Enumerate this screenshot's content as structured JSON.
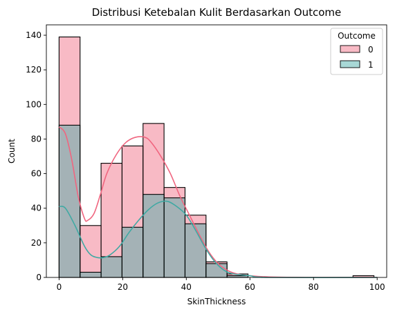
{
  "chart_data": {
    "type": "bar",
    "title": "Distribusi Ketebalan Kulit Berdasarkan Outcome",
    "xlabel": "SkinThickness",
    "ylabel": "Count",
    "xlim": [
      -4,
      103
    ],
    "ylim": [
      0,
      146
    ],
    "x_ticks": [
      0,
      20,
      40,
      60,
      80,
      100
    ],
    "y_ticks": [
      0,
      20,
      40,
      60,
      80,
      100,
      120,
      140
    ],
    "bin_edges": [
      0,
      6.6,
      13.2,
      19.8,
      26.4,
      33,
      39.6,
      46.2,
      52.8,
      59.4,
      66,
      72.6,
      79.2,
      85.8,
      92.4,
      99
    ],
    "legend": {
      "title": "Outcome",
      "position": "top-right"
    },
    "series": [
      {
        "name": "0",
        "color": "#f0657f",
        "values": [
          139,
          30,
          66,
          76,
          89,
          52,
          36,
          9,
          2,
          0,
          0,
          0,
          0,
          0,
          1
        ],
        "kde": [
          [
            0,
            87
          ],
          [
            2,
            83
          ],
          [
            4,
            68
          ],
          [
            6,
            47
          ],
          [
            8,
            34
          ],
          [
            9,
            33
          ],
          [
            11,
            37
          ],
          [
            13,
            48
          ],
          [
            15,
            60
          ],
          [
            18,
            71
          ],
          [
            21,
            78
          ],
          [
            24,
            81
          ],
          [
            27,
            81
          ],
          [
            29,
            78
          ],
          [
            32,
            70
          ],
          [
            35,
            60
          ],
          [
            38,
            47
          ],
          [
            41,
            36
          ],
          [
            44,
            25
          ],
          [
            47,
            15
          ],
          [
            50,
            8
          ],
          [
            53,
            4
          ],
          [
            56,
            2
          ],
          [
            60,
            1
          ],
          [
            66,
            0.3
          ],
          [
            80,
            0
          ],
          [
            100,
            0
          ]
        ]
      },
      {
        "name": "1",
        "color": "#3fa9a3",
        "values": [
          88,
          3,
          12,
          29,
          48,
          46,
          31,
          8,
          1,
          0,
          0,
          0,
          0,
          0,
          0
        ],
        "kde": [
          [
            0,
            41
          ],
          [
            2,
            40
          ],
          [
            5,
            30
          ],
          [
            8,
            18
          ],
          [
            10,
            13
          ],
          [
            12,
            11.5
          ],
          [
            14,
            11.5
          ],
          [
            16,
            13
          ],
          [
            19,
            18
          ],
          [
            22,
            26
          ],
          [
            25,
            33
          ],
          [
            28,
            39
          ],
          [
            31,
            43
          ],
          [
            34,
            44
          ],
          [
            37,
            41
          ],
          [
            40,
            36
          ],
          [
            43,
            27
          ],
          [
            46,
            17
          ],
          [
            49,
            9
          ],
          [
            52,
            4
          ],
          [
            55,
            2
          ],
          [
            60,
            1
          ],
          [
            66,
            0
          ],
          [
            100,
            0
          ]
        ]
      }
    ]
  }
}
